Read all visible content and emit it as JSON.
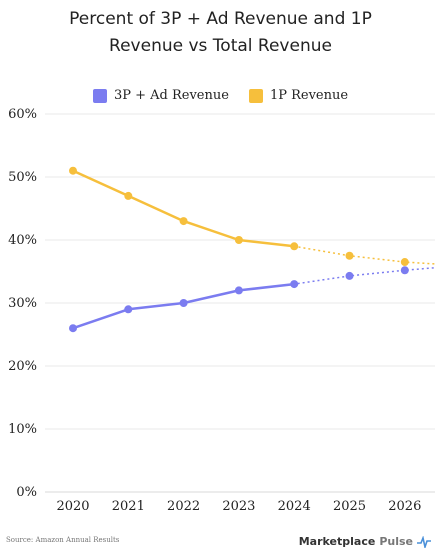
{
  "chart_data": {
    "type": "line",
    "title_lines": [
      "Percent of 3P + Ad Revenue and 1P",
      "Revenue vs Total Revenue"
    ],
    "categories": [
      "2020",
      "2021",
      "2022",
      "2023",
      "2024",
      "2025",
      "2026"
    ],
    "y_ticks": [
      "0%",
      "10%",
      "20%",
      "30%",
      "40%",
      "50%",
      "60%"
    ],
    "ylim": [
      0,
      60
    ],
    "grid": true,
    "legend_position": "top-center",
    "series": [
      {
        "name": "3P + Ad Revenue",
        "color": "#7b7cf0",
        "actual": [
          26,
          29,
          30,
          32,
          33
        ],
        "projected": [
          34.3,
          35.2
        ],
        "trend_end": 35.6
      },
      {
        "name": "1P Revenue",
        "color": "#f6bf3c",
        "actual": [
          51,
          47,
          43,
          40,
          39
        ],
        "projected": [
          37.5,
          36.5
        ],
        "trend_end": 36.2
      }
    ]
  },
  "footer": {
    "source": "Source: Amazon Annual Results",
    "brand": "Marketplace",
    "brand_suffix": "Pulse"
  }
}
